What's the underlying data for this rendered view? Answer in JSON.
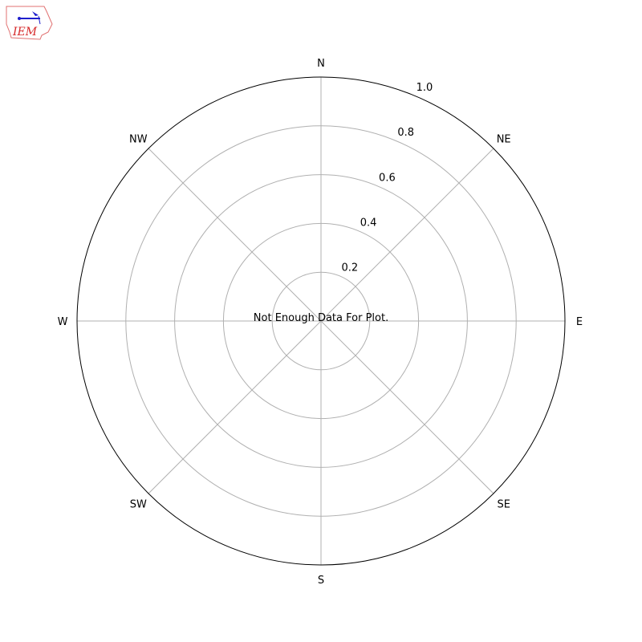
{
  "logo": {
    "text": "IEM"
  },
  "chart_data": {
    "type": "polar",
    "title": "",
    "direction_labels": [
      "N",
      "NE",
      "E",
      "SE",
      "S",
      "SW",
      "W",
      "NW"
    ],
    "radial_ticks": [
      "0.2",
      "0.4",
      "0.6",
      "0.8",
      "1.0"
    ],
    "radial_tick_values": [
      0.2,
      0.4,
      0.6,
      0.8,
      1.0
    ],
    "rlim": [
      0,
      1.0
    ],
    "grid": true,
    "series": [],
    "annotation": "Not Enough Data For Plot.",
    "colors": {
      "grid": "#b0b0b0",
      "frame": "#000000",
      "logo_red": "#d62728",
      "logo_blue": "#1f1fcc"
    }
  }
}
